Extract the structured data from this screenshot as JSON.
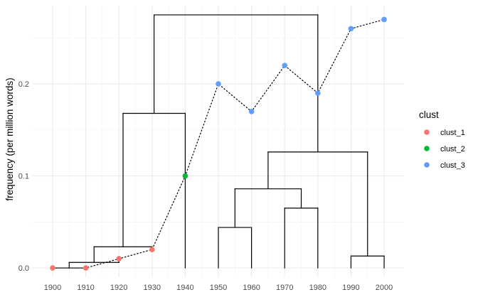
{
  "chart_data": {
    "type": "scatter",
    "xlabel": "",
    "ylabel": "frequency (per million words)",
    "x_ticks": [
      "1900",
      "1910",
      "1920",
      "1930",
      "1940",
      "1950",
      "1960",
      "1970",
      "1980",
      "1990",
      "2000"
    ],
    "y_ticks": [
      "0.0",
      "0.1",
      "0.2"
    ],
    "xlim": [
      1894,
      2006
    ],
    "ylim": [
      -0.01,
      0.285
    ],
    "grid": true,
    "legend_title": "clust",
    "legend_position": "right",
    "series": [
      {
        "name": "clust_1",
        "color": "#F8766D",
        "x": [
          1900,
          1910,
          1920,
          1930
        ],
        "y": [
          0.0,
          0.0,
          0.01,
          0.02
        ]
      },
      {
        "name": "clust_2",
        "color": "#00BA38",
        "x": [
          1940
        ],
        "y": [
          0.1
        ]
      },
      {
        "name": "clust_3",
        "color": "#619CFF",
        "x": [
          1950,
          1960,
          1970,
          1980,
          1990,
          2000
        ],
        "y": [
          0.2,
          0.17,
          0.22,
          0.19,
          0.26,
          0.27
        ]
      }
    ],
    "trend_line": {
      "style": "dotted",
      "color": "#000000",
      "x": [
        1900,
        1910,
        1920,
        1930,
        1940,
        1950,
        1960,
        1970,
        1980,
        1990,
        2000
      ],
      "y": [
        0.0,
        0.0,
        0.01,
        0.02,
        0.1,
        0.2,
        0.17,
        0.22,
        0.19,
        0.26,
        0.27
      ]
    },
    "dendrogram_segments": [
      [
        1900,
        0.0,
        1900,
        0.0
      ],
      [
        1910,
        0.0,
        1910,
        0.0
      ],
      [
        1900,
        0.0,
        1910,
        0.0
      ],
      [
        1905,
        0.0,
        1905,
        0.006
      ],
      [
        1920,
        0.01,
        1920,
        0.006
      ],
      [
        1905,
        0.006,
        1920,
        0.006
      ],
      [
        1912.5,
        0.006,
        1912.5,
        0.023
      ],
      [
        1930,
        0.02,
        1930,
        0.023
      ],
      [
        1912.5,
        0.023,
        1930,
        0.023
      ],
      [
        1921.25,
        0.023,
        1921.25,
        0.168
      ],
      [
        1940,
        0.0,
        1940,
        0.168
      ],
      [
        1921.25,
        0.168,
        1940,
        0.168
      ],
      [
        1950,
        0.0,
        1950,
        0.044
      ],
      [
        1960,
        0.0,
        1960,
        0.044
      ],
      [
        1950,
        0.044,
        1960,
        0.044
      ],
      [
        1970,
        0.0,
        1970,
        0.065
      ],
      [
        1980,
        0.0,
        1980,
        0.065
      ],
      [
        1970,
        0.065,
        1980,
        0.065
      ],
      [
        1955,
        0.044,
        1955,
        0.086
      ],
      [
        1975,
        0.065,
        1975,
        0.086
      ],
      [
        1955,
        0.086,
        1975,
        0.086
      ],
      [
        1990,
        0.0,
        1990,
        0.013
      ],
      [
        2000,
        0.0,
        2000,
        0.013
      ],
      [
        1990,
        0.013,
        2000,
        0.013
      ],
      [
        1965,
        0.086,
        1965,
        0.126
      ],
      [
        1995,
        0.013,
        1995,
        0.126
      ],
      [
        1965,
        0.126,
        1995,
        0.126
      ],
      [
        1980,
        0.126,
        1980,
        0.275
      ],
      [
        1930.6,
        0.168,
        1930.6,
        0.275
      ],
      [
        1930.6,
        0.275,
        1980,
        0.275
      ]
    ]
  }
}
